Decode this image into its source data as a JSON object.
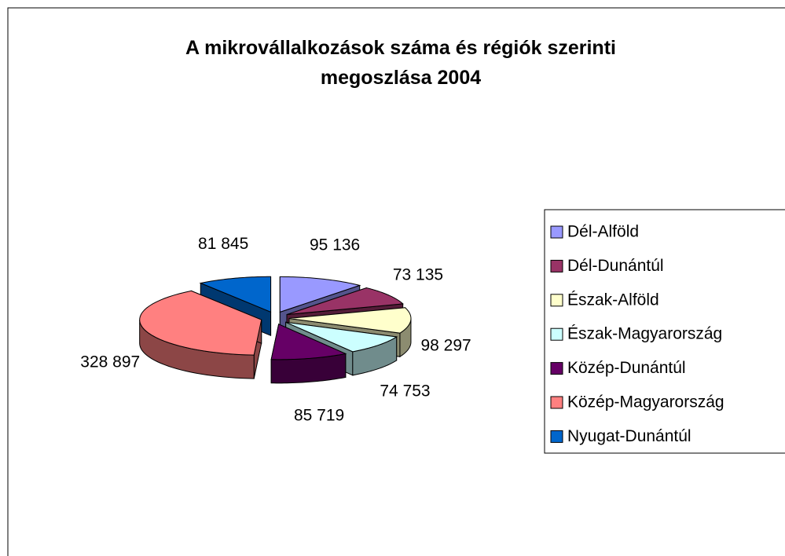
{
  "chart_data": {
    "type": "pie3d",
    "title": "A mikrovállalkozások száma és régiók szerinti megoszlása 2004",
    "categories": [
      "Dél-Alföld",
      "Dél-Dunántúl",
      "Észak-Alföld",
      "Észak-Magyarország",
      "Közép-Dunántúl",
      "Közép-Magyarország",
      "Nyugat-Dunántúl"
    ],
    "values": [
      95136,
      73135,
      98297,
      74753,
      85719,
      328897,
      81845
    ],
    "value_labels": [
      "95 136",
      "73 135",
      "98 297",
      "74 753",
      "85 719",
      "328 897",
      "81 845"
    ],
    "colors": [
      "#9999ff",
      "#993366",
      "#ffffcc",
      "#ccffff",
      "#660066",
      "#ff8080",
      "#0066cc"
    ],
    "legend": "right"
  }
}
